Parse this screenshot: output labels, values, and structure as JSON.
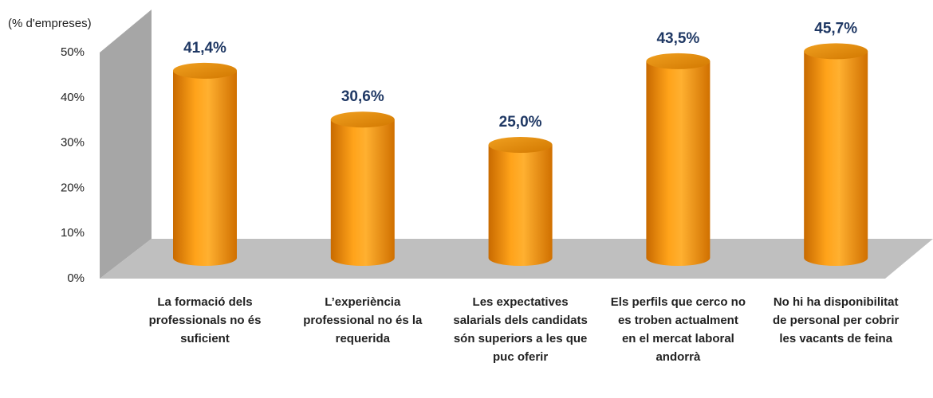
{
  "chart_data": {
    "type": "bar",
    "y_label": "(% d'empreses)",
    "categories": [
      "La formació dels professionals no és suficient",
      "L’experiència professional no és la requerida",
      "Les expectatives salarials dels candidats són superiors a les que puc oferir",
      "Els perfils que cerco no es troben actualment en el mercat laboral andorrà",
      "No hi ha disponibilitat de personal per cobrir les vacants de feina"
    ],
    "values": [
      41.4,
      30.6,
      25.0,
      43.5,
      45.7
    ],
    "value_labels": [
      "41,4%",
      "30,6%",
      "25,0%",
      "43,5%",
      "45,7%"
    ],
    "color": "#ff9900",
    "ylim": [
      0,
      50
    ],
    "yticks": [
      {
        "value": 0,
        "label": "0%"
      },
      {
        "value": 10,
        "label": "10%"
      },
      {
        "value": 20,
        "label": "20%"
      },
      {
        "value": 30,
        "label": "30%"
      },
      {
        "value": 40,
        "label": "40%"
      },
      {
        "value": 50,
        "label": "50%"
      }
    ],
    "grid": false
  }
}
